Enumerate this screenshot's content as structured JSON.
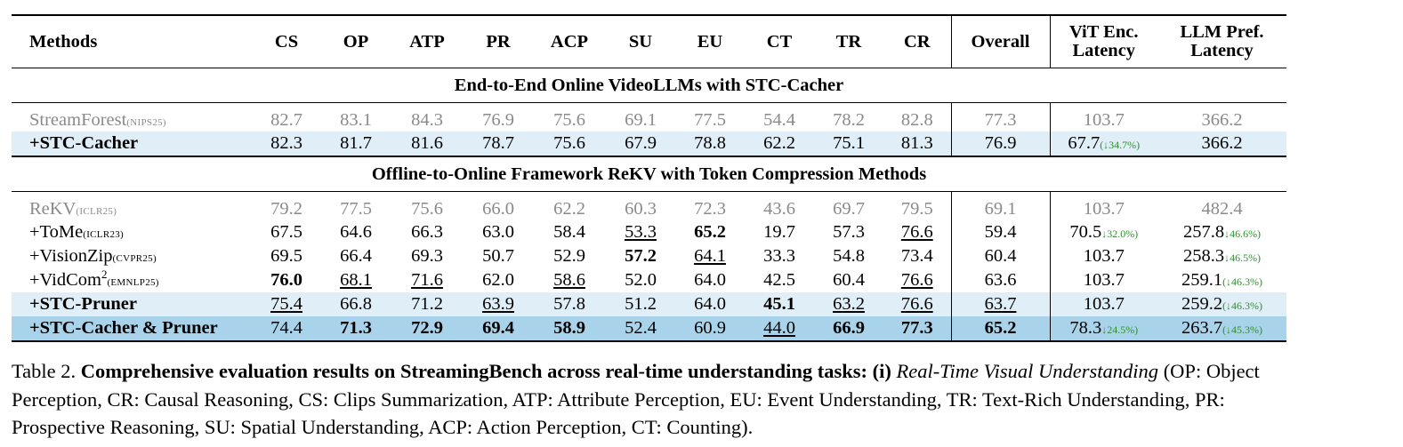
{
  "header": {
    "methods": "Methods",
    "cols": [
      "CS",
      "OP",
      "ATP",
      "PR",
      "ACP",
      "SU",
      "EU",
      "CT",
      "TR",
      "CR"
    ],
    "overall": "Overall",
    "vit_1": "ViT Enc.",
    "vit_2": "Latency",
    "llm_1": "LLM Pref.",
    "llm_2": "Latency"
  },
  "sections": {
    "s1": "End-to-End Online VideoLLMs with STC-Cacher",
    "s2": "Offline-to-Online Framework ReKV with Token Compression Methods"
  },
  "rows": {
    "streamforest": {
      "name": "StreamForest",
      "venue": "(NIPS25)",
      "scores": [
        "82.7",
        "83.1",
        "84.3",
        "76.9",
        "75.6",
        "69.1",
        "77.5",
        "54.4",
        "78.2",
        "82.8"
      ],
      "overall": "77.3",
      "vit": "103.7",
      "llm": "366.2"
    },
    "stc_cacher": {
      "name": "+STC-Cacher",
      "scores": [
        "82.3",
        "81.7",
        "81.6",
        "78.7",
        "75.6",
        "67.9",
        "78.8",
        "62.2",
        "75.1",
        "81.3"
      ],
      "overall": "76.9",
      "vit": "67.7",
      "vit_delta": "(↓34.7%)",
      "llm": "366.2"
    },
    "rekv": {
      "name": "ReKV",
      "venue": "(ICLR25)",
      "scores": [
        "79.2",
        "77.5",
        "75.6",
        "66.0",
        "62.2",
        "60.3",
        "72.3",
        "43.6",
        "69.7",
        "79.5"
      ],
      "overall": "69.1",
      "vit": "103.7",
      "llm": "482.4"
    },
    "tome": {
      "name": "+ToMe",
      "venue": "(ICLR23)",
      "scores": [
        "67.5",
        "64.6",
        "66.3",
        "63.0",
        "58.4",
        "53.3",
        "65.2",
        "19.7",
        "57.3",
        "76.6"
      ],
      "overall": "59.4",
      "vit": "70.5",
      "vit_delta": "↓32.0%)",
      "llm": "257.8",
      "llm_delta": "↓46.6%)"
    },
    "visionzip": {
      "name": "+VisionZip",
      "venue": "(CVPR25)",
      "scores": [
        "69.5",
        "66.4",
        "69.3",
        "50.7",
        "52.9",
        "57.2",
        "64.1",
        "33.3",
        "54.8",
        "73.4"
      ],
      "overall": "60.4",
      "vit": "103.7",
      "llm": "258.3",
      "llm_delta": "↓46.5%)"
    },
    "vidcom": {
      "name": "+VidCom",
      "sup": "2",
      "venue": "(EMNLP25)",
      "scores": [
        "76.0",
        "68.1",
        "71.6",
        "62.0",
        "58.6",
        "52.0",
        "64.0",
        "42.5",
        "60.4",
        "76.6"
      ],
      "overall": "63.6",
      "vit": "103.7",
      "llm": "259.1",
      "llm_delta": "(↓46.3%)"
    },
    "stc_pruner": {
      "name": "+STC-Pruner",
      "scores": [
        "75.4",
        "66.8",
        "71.2",
        "63.9",
        "57.8",
        "51.2",
        "64.0",
        "45.1",
        "63.2",
        "76.6"
      ],
      "overall": "63.7",
      "vit": "103.7",
      "llm": "259.2",
      "llm_delta": "(↓46.3%)"
    },
    "cacher_pruner": {
      "name": "+STC-Cacher & Pruner",
      "scores": [
        "74.4",
        "71.3",
        "72.9",
        "69.4",
        "58.9",
        "52.4",
        "60.9",
        "44.0",
        "66.9",
        "77.3"
      ],
      "overall": "65.2",
      "vit": "78.3",
      "vit_delta": "↓24.5%)",
      "llm": "263.7",
      "llm_delta": "(↓45.3%)"
    }
  },
  "caption": {
    "label": "Table 2.",
    "bold": "Comprehensive evaluation results on StreamingBench across real-time understanding tasks: (i)",
    "italic": "Real-Time Visual Understanding",
    "rest": "(OP: Object Perception, CR: Causal Reasoning, CS: Clips Summarization, ATP: Attribute Perception, EU: Event Understanding, TR: Text-Rich Understanding, PR: Prospective Reasoning, SU: Spatial Understanding, ACP: Action Perception, CT: Counting)."
  },
  "colors": {
    "delta_green": "#2f8f2f",
    "row_highlight_light": "#dfeef7",
    "row_highlight_dark": "#a9d3ea",
    "baseline_gray": "#8a8a8a"
  }
}
